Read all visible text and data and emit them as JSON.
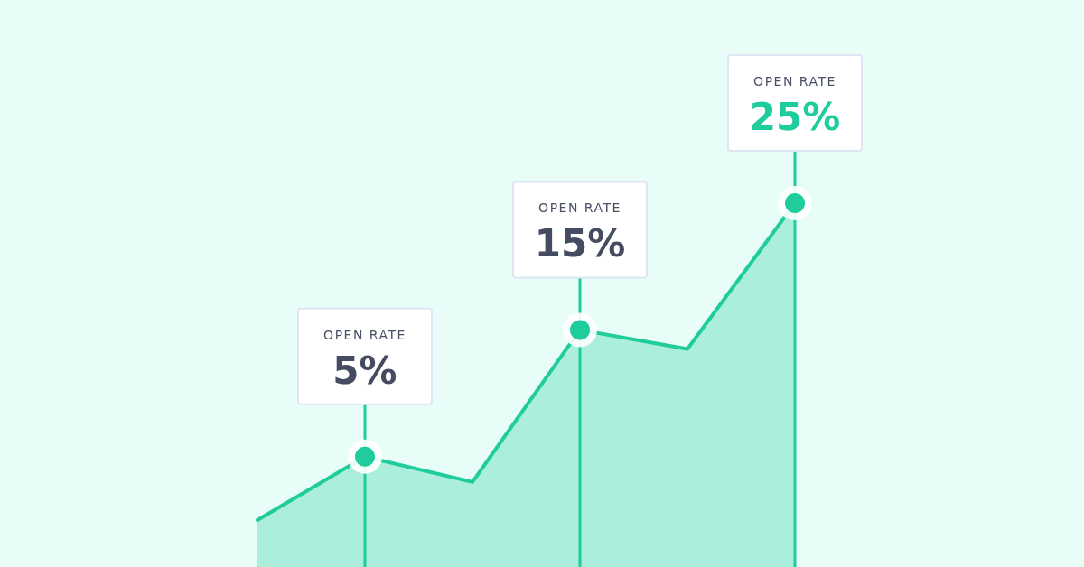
{
  "chart_data": {
    "type": "area",
    "categories": [
      null,
      null,
      null,
      null,
      null,
      null
    ],
    "series": [
      {
        "color": "#1fcc9c",
        "values": [
          0,
          5,
          3,
          15,
          13.5,
          25
        ],
        "value_labels": [
          null,
          "5%",
          null,
          "15%",
          null,
          "25%"
        ]
      }
    ],
    "annotations": [
      "OPEN RATE",
      "OPEN RATE",
      "OPEN RATE"
    ],
    "marker": "circle"
  }
}
